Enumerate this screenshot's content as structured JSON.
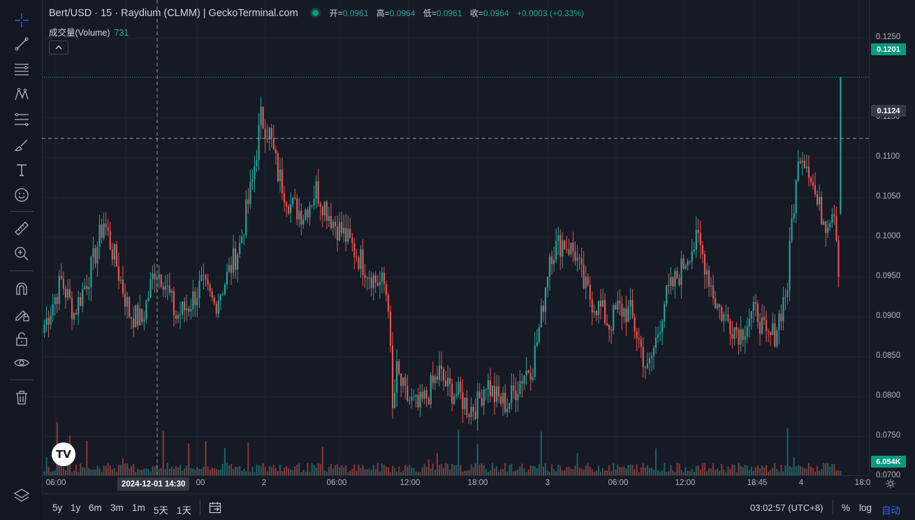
{
  "legend": {
    "title": "Bert/USD · 15 · Raydium (CLMM) | GeckoTerminal.com",
    "open_label": "开=",
    "open": "0.0961",
    "high_label": "高=",
    "high": "0.0964",
    "low_label": "低=",
    "low": "0.0961",
    "close_label": "收=",
    "close": "0.0964",
    "change": "+0.0003 (+0.33%)"
  },
  "volume_legend": {
    "label": "成交量(Volume)",
    "value": "731"
  },
  "price_axis": {
    "ticks": [
      "0.1250",
      "0.1150",
      "0.1100",
      "0.1050",
      "0.1000",
      "0.0950",
      "0.0900",
      "0.0850",
      "0.0800",
      "0.0750",
      "0.0700"
    ],
    "last_price": "0.1201",
    "crosshair_price": "0.1124",
    "volume_badge": "6.054K"
  },
  "time_axis": {
    "ticks": [
      "06:00",
      "00",
      "2",
      "06:00",
      "12:00",
      "18:00",
      "3",
      "06:00",
      "12:00",
      "18:45",
      "4",
      "18:0"
    ],
    "crosshair_label": "2024-12-01   14:30"
  },
  "bottom_bar": {
    "ranges": [
      "5y",
      "1y",
      "6m",
      "3m",
      "1m",
      "5天",
      "1天"
    ],
    "clock": "03:02:57 (UTC+8)",
    "percent": "%",
    "log": "log",
    "auto": "自动"
  },
  "colors": {
    "up": "#26a69a",
    "down": "#ef5350",
    "background": "#161a25",
    "accent": "#089981"
  },
  "toolbar_icons": [
    "crosshair-icon",
    "trend-line-icon",
    "horizontal-lines-icon",
    "pattern-icon",
    "fib-retracement-icon",
    "brush-icon",
    "text-icon",
    "emoji-icon",
    "ruler-icon",
    "zoom-in-icon",
    "magnet-icon",
    "lock-draw-icon",
    "lock-icon",
    "eye-icon",
    "trash-icon",
    "layers-icon"
  ],
  "chart_data": {
    "type": "candlestick",
    "title": "Bert/USD · 15 · Raydium (CLMM) | GeckoTerminal.com",
    "ylim": [
      0.068,
      0.1265
    ],
    "grid": true,
    "anchors": [
      [
        0,
        0.089
      ],
      [
        8,
        0.0945
      ],
      [
        14,
        0.0905
      ],
      [
        22,
        0.096
      ],
      [
        28,
        0.102
      ],
      [
        34,
        0.0965
      ],
      [
        40,
        0.0905
      ],
      [
        46,
        0.0895
      ],
      [
        52,
        0.096
      ],
      [
        56,
        0.095
      ],
      [
        62,
        0.09
      ],
      [
        68,
        0.0915
      ],
      [
        74,
        0.094
      ],
      [
        80,
        0.0915
      ],
      [
        86,
        0.095
      ],
      [
        92,
        0.099
      ],
      [
        98,
        0.107
      ],
      [
        102,
        0.115
      ],
      [
        106,
        0.113
      ],
      [
        110,
        0.108
      ],
      [
        116,
        0.104
      ],
      [
        122,
        0.103
      ],
      [
        128,
        0.106
      ],
      [
        132,
        0.104
      ],
      [
        136,
        0.102
      ],
      [
        142,
        0.1
      ],
      [
        148,
        0.0975
      ],
      [
        152,
        0.096
      ],
      [
        156,
        0.0945
      ],
      [
        160,
        0.094
      ],
      [
        162,
        0.092
      ],
      [
        164,
        0.078
      ],
      [
        166,
        0.083
      ],
      [
        170,
        0.08
      ],
      [
        176,
        0.0785
      ],
      [
        180,
        0.08
      ],
      [
        186,
        0.083
      ],
      [
        190,
        0.081
      ],
      [
        196,
        0.08
      ],
      [
        200,
        0.0785
      ],
      [
        204,
        0.079
      ],
      [
        208,
        0.082
      ],
      [
        212,
        0.08
      ],
      [
        218,
        0.079
      ],
      [
        222,
        0.081
      ],
      [
        226,
        0.083
      ],
      [
        230,
        0.084
      ],
      [
        234,
        0.09
      ],
      [
        238,
        0.098
      ],
      [
        244,
        0.0995
      ],
      [
        250,
        0.098
      ],
      [
        254,
        0.094
      ],
      [
        258,
        0.092
      ],
      [
        262,
        0.091
      ],
      [
        266,
        0.089
      ],
      [
        270,
        0.091
      ],
      [
        276,
        0.0905
      ],
      [
        280,
        0.087
      ],
      [
        284,
        0.083
      ],
      [
        288,
        0.087
      ],
      [
        292,
        0.092
      ],
      [
        296,
        0.094
      ],
      [
        300,
        0.096
      ],
      [
        304,
        0.0985
      ],
      [
        308,
        0.0995
      ],
      [
        312,
        0.096
      ],
      [
        316,
        0.092
      ],
      [
        320,
        0.09
      ],
      [
        324,
        0.089
      ],
      [
        328,
        0.088
      ],
      [
        332,
        0.09
      ],
      [
        336,
        0.0905
      ],
      [
        340,
        0.087
      ],
      [
        344,
        0.088
      ],
      [
        348,
        0.092
      ],
      [
        350,
        0.094
      ],
      [
        352,
        0.102
      ],
      [
        356,
        0.111
      ],
      [
        360,
        0.109
      ],
      [
        364,
        0.104
      ],
      [
        368,
        0.102
      ],
      [
        372,
        0.104
      ],
      [
        374,
        0.0964
      ]
    ],
    "last_candle": {
      "open": 0.103,
      "high": 0.1201,
      "low": 0.1028,
      "close": 0.1201
    }
  }
}
